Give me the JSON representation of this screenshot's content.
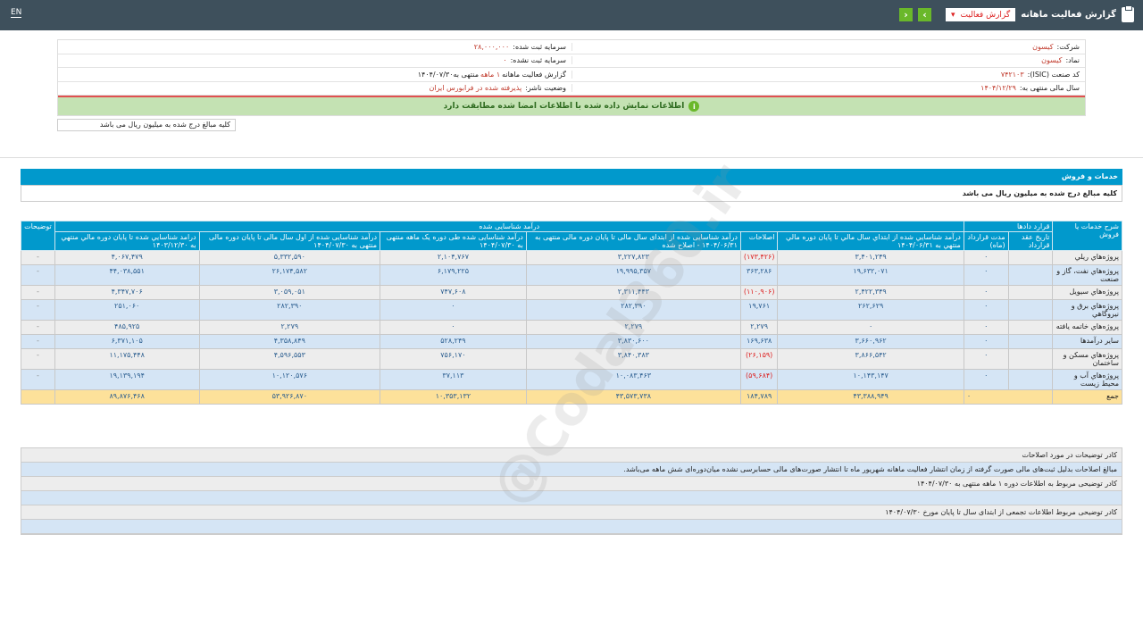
{
  "header": {
    "lang": "EN",
    "title": "گزارش فعالیت ماهانه",
    "select_value": "گزارش فعالیت",
    "prev": "‹",
    "next": "›"
  },
  "info": {
    "company_label": "شرکت:",
    "company": "کیسون",
    "symbol_label": "نماد:",
    "symbol": "کیسون",
    "isic_label": "کد صنعت (ISIC):",
    "isic": "۷۴۲۱۰۳",
    "fy_label": "سال مالی منتهی به:",
    "fy": "۱۴۰۴/۱۲/۲۹",
    "cap_label": "سرمایه ثبت شده:",
    "cap": "۲۸,۰۰۰,۰۰۰",
    "uncap_label": "سرمایه ثبت نشده:",
    "uncap": "۰",
    "report_label": "گزارش فعالیت ماهانه",
    "report_period": "۱ ماهه",
    "report_end": "منتهی به۱۴۰۴/۰۷/۳۰",
    "status_label": "وضعیت ناشر:",
    "status": "پذیرفته شده در فرابورس ایران",
    "verified": "اطلاعات نمایش داده شده با اطلاعات امضا شده مطابقت دارد",
    "units_note": "کلیه مبالغ درج شده به میلیون ریال می باشد"
  },
  "section": {
    "title": "خدمات و فروش",
    "units": "کلیه مبالغ درج شده به میلیون ریال می باشد"
  },
  "table": {
    "h_desc": "شرح خدمات یا فروش",
    "h_contracts": "قرارد دادها",
    "h_revenue": "درآمد شناسایی شده",
    "h_notes": "توضیحات",
    "h_date": "تاریخ عقد قرارداد",
    "h_duration": "مدت قرارداد (ماه)",
    "h_cum": "درآمد شناسايي شده از ابتداي سال مالي تا پايان دوره مالي منتهي به ۱۴۰۴/۰۶/۳۱",
    "h_adj": "اصلاحات",
    "h_corr": "درآمد شناسایی شده از ابتدای سال مالی تا پایان دوره مالی منتهی به ۱۴۰۴/۰۶/۳۱ - اصلاح شده",
    "h_month": "درآمد شناسایی شده طی دوره یک ماهه منتهی به ۱۴۰۴/۰۷/۳۰",
    "h_ytd": "درآمد شناسایی شده از اول سال مالی تا پایان دوره مالی منتهی به ۱۴۰۴/۰۷/۳۰",
    "h_prev": "درامد شناسايي شده تا پايان دوره مالي منتهي به ۱۴۰۳/۱۲/۳۰",
    "rows": [
      {
        "name": "پروژه‌هاي ريلي",
        "date": "",
        "dur": "۰",
        "cum": "۳,۴۰۱,۲۴۹",
        "adj": "(۱۷۳,۴۲۶)",
        "corr": "۳,۲۲۷,۸۲۳",
        "month": "۲,۱۰۴,۷۶۷",
        "ytd": "۵,۳۳۲,۵۹۰",
        "prev": "۴,۰۶۷,۴۷۹",
        "note": "-"
      },
      {
        "name": "پروژه‌هاي نفت، گاز و صنعت",
        "date": "",
        "dur": "۰",
        "cum": "۱۹,۶۳۲,۰۷۱",
        "adj": "۳۶۳,۲۸۶",
        "corr": "۱۹,۹۹۵,۳۵۷",
        "month": "۶,۱۷۹,۲۲۵",
        "ytd": "۲۶,۱۷۴,۵۸۲",
        "prev": "۴۴,۰۳۸,۵۵۱",
        "note": "-"
      },
      {
        "name": "پروژه‌هاي سيويل",
        "date": "",
        "dur": "۰",
        "cum": "۲,۴۲۲,۳۴۹",
        "adj": "(۱۱۰,۹۰۶)",
        "corr": "۲,۳۱۱,۴۴۳",
        "month": "۷۴۷,۶۰۸",
        "ytd": "۳,۰۵۹,۰۵۱",
        "prev": "۴,۳۴۷,۷۰۶",
        "note": "-"
      },
      {
        "name": "پروژه‌هاي برق و نيروگاهي",
        "date": "",
        "dur": "۰",
        "cum": "۲۶۲,۶۲۹",
        "adj": "۱۹,۷۶۱",
        "corr": "۲۸۲,۳۹۰",
        "month": "۰",
        "ytd": "۲۸۲,۳۹۰",
        "prev": "۲۵۱,۰۶۰",
        "note": "-"
      },
      {
        "name": "پروژه‌هاي خاتمه يافته",
        "date": "",
        "dur": "۰",
        "cum": "۰",
        "adj": "۲,۲۷۹",
        "corr": "۲,۲۷۹",
        "month": "۰",
        "ytd": "۲,۲۷۹",
        "prev": "۴۸۵,۹۲۵",
        "note": "-"
      },
      {
        "name": "ساير درآمدها",
        "date": "",
        "dur": "۰",
        "cum": "۳,۶۶۰,۹۶۲",
        "adj": "۱۶۹,۶۳۸",
        "corr": "۳,۸۳۰,۶۰۰",
        "month": "۵۲۸,۲۴۹",
        "ytd": "۴,۳۵۸,۸۴۹",
        "prev": "۶,۳۷۱,۱۰۵",
        "note": "-"
      },
      {
        "name": "پروژه‌هاي مسکن و ساختمان",
        "date": "",
        "dur": "۰",
        "cum": "۳,۸۶۶,۵۴۲",
        "adj": "(۲۶,۱۵۹)",
        "corr": "۳,۸۴۰,۳۸۳",
        "month": "۷۵۶,۱۷۰",
        "ytd": "۴,۵۹۶,۵۵۳",
        "prev": "۱۱,۱۷۵,۴۴۸",
        "note": "-"
      },
      {
        "name": "پروژه‌هاي آب و محيط زيست",
        "date": "",
        "dur": "۰",
        "cum": "۱۰,۱۴۳,۱۴۷",
        "adj": "(۵۹,۶۸۴)",
        "corr": "۱۰,۰۸۳,۴۶۳",
        "month": "۳۷,۱۱۳",
        "ytd": "۱۰,۱۲۰,۵۷۶",
        "prev": "۱۹,۱۳۹,۱۹۴",
        "note": "-"
      }
    ],
    "total": {
      "name": "جمع",
      "dur": "۰",
      "cum": "۴۳,۳۸۸,۹۴۹",
      "adj": "۱۸۴,۷۸۹",
      "corr": "۴۳,۵۷۳,۷۳۸",
      "month": "۱۰,۳۵۳,۱۳۲",
      "ytd": "۵۳,۹۲۶,۸۷۰",
      "prev": "۸۹,۸۷۶,۴۶۸",
      "note": ""
    }
  },
  "notes": [
    "کادر توضیحات در مورد اصلاحات",
    "مبالغ اصلاحات بدلیل ثبت‌های مالی صورت گرفته از زمان انتشار فعالیت ماهانه شهریور ماه تا انتشار صورت‌های مالی حسابرسی نشده میان‌دوره‌ای شش ماهه می‌باشد.",
    "کادر توضیحی مربوط به اطلاعات دوره ۱ ماهه منتهی به ۱۴۰۴/۰۷/۳۰",
    "",
    "کادر توضیحی مربوط اطلاعات تجمعی از ابتدای سال تا پایان مورخ ۱۴۰۴/۰۷/۳۰",
    ""
  ],
  "watermark": "@Codal360.ir",
  "colors": {
    "header_bg": "#3e505c",
    "table_header": "#0199cc",
    "row_alt": "#d5e5f5",
    "total_row": "#fde19a",
    "negative": "#dd2222",
    "verified_bg": "#c4e2b3"
  }
}
